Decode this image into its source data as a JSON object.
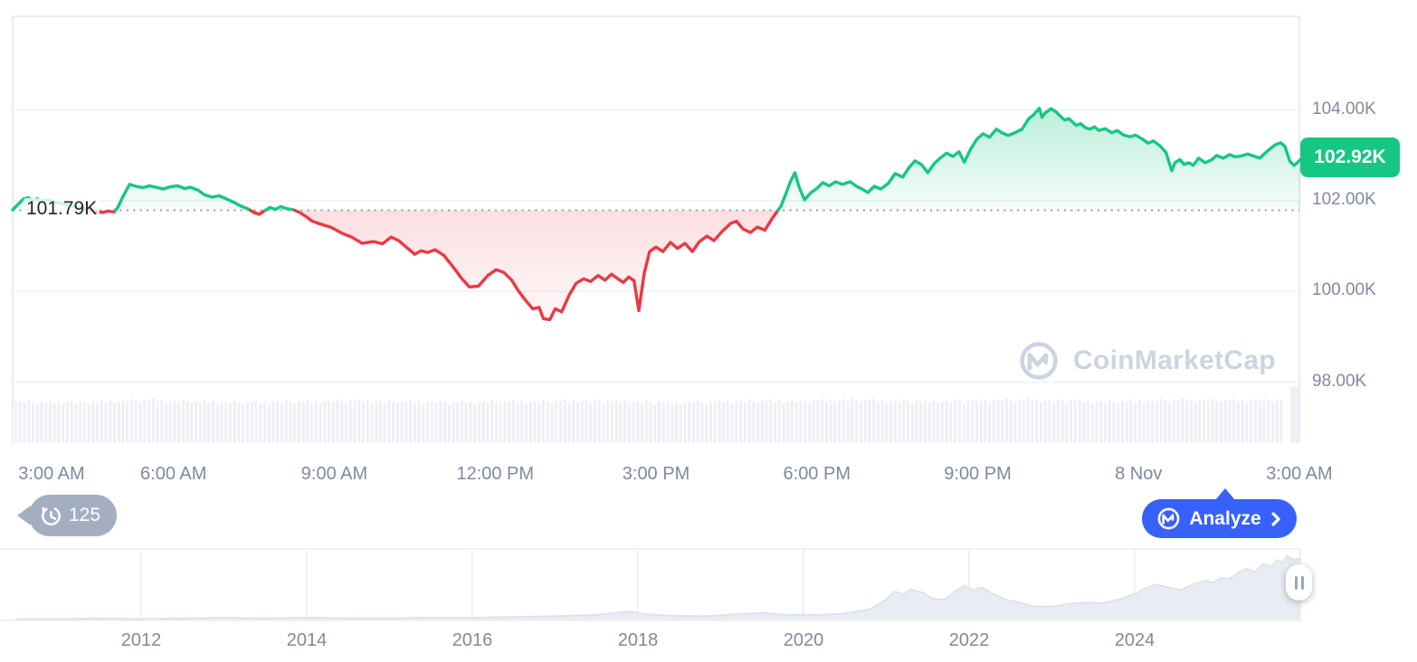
{
  "watermark": {
    "text": "CoinMarketCap"
  },
  "history_badge": {
    "count": "125"
  },
  "analyze_button": {
    "label": "Analyze"
  },
  "chart_data": [
    {
      "id": "price",
      "type": "line",
      "title": "BTC price (24h), CoinMarketCap style chart",
      "unit": "USD thousands",
      "up_color": "#16c784",
      "down_color": "#ea3943",
      "grid_color": "#eef1f6",
      "border_color": "#e7eaef",
      "axis_text_color": "#808a9d",
      "ylim": [
        97.6,
        104.6
      ],
      "y_ticks": [
        {
          "value": 104,
          "label": "104.00K"
        },
        {
          "value": 102,
          "label": "102.00K"
        },
        {
          "value": 100,
          "label": "100.00K"
        },
        {
          "value": 98,
          "label": "98.00K"
        }
      ],
      "baseline": {
        "value": 101.79,
        "label": "101.79K"
      },
      "last_price": {
        "value": 102.92,
        "label": "102.92K"
      },
      "x_ticks": [
        {
          "t": 0,
          "label": "3:00 AM"
        },
        {
          "t": 3,
          "label": "6:00 AM"
        },
        {
          "t": 6,
          "label": "9:00 AM"
        },
        {
          "t": 9,
          "label": "12:00 PM"
        },
        {
          "t": 12,
          "label": "3:00 PM"
        },
        {
          "t": 15,
          "label": "6:00 PM"
        },
        {
          "t": 18,
          "label": "9:00 PM"
        },
        {
          "t": 21,
          "label": "8 Nov"
        },
        {
          "t": 24,
          "label": "3:00 AM"
        }
      ],
      "points": [
        [
          0,
          101.8
        ],
        [
          0.1,
          101.92
        ],
        [
          0.2,
          102.04
        ],
        [
          0.29,
          102.07
        ],
        [
          0.37,
          102.0
        ],
        [
          0.46,
          102.05
        ],
        [
          0.54,
          101.99
        ],
        [
          0.64,
          102.02
        ],
        [
          0.78,
          101.97
        ],
        [
          0.95,
          101.93
        ],
        [
          1.12,
          101.88
        ],
        [
          1.28,
          101.84
        ],
        [
          1.42,
          101.8
        ],
        [
          1.55,
          101.76
        ],
        [
          1.67,
          101.74
        ],
        [
          1.79,
          101.77
        ],
        [
          1.89,
          101.75
        ],
        [
          1.96,
          101.85
        ],
        [
          2.06,
          102.1
        ],
        [
          2.18,
          102.36
        ],
        [
          2.3,
          102.32
        ],
        [
          2.43,
          102.29
        ],
        [
          2.55,
          102.33
        ],
        [
          2.67,
          102.3
        ],
        [
          2.81,
          102.26
        ],
        [
          2.94,
          102.31
        ],
        [
          3.08,
          102.33
        ],
        [
          3.21,
          102.27
        ],
        [
          3.31,
          102.3
        ],
        [
          3.45,
          102.24
        ],
        [
          3.58,
          102.13
        ],
        [
          3.72,
          102.08
        ],
        [
          3.85,
          102.11
        ],
        [
          3.99,
          102.04
        ],
        [
          4.12,
          101.97
        ],
        [
          4.26,
          101.88
        ],
        [
          4.39,
          101.82
        ],
        [
          4.5,
          101.74
        ],
        [
          4.6,
          101.7
        ],
        [
          4.7,
          101.78
        ],
        [
          4.8,
          101.85
        ],
        [
          4.9,
          101.81
        ],
        [
          5.0,
          101.87
        ],
        [
          5.1,
          101.83
        ],
        [
          5.24,
          101.8
        ],
        [
          5.37,
          101.73
        ],
        [
          5.51,
          101.62
        ],
        [
          5.59,
          101.55
        ],
        [
          5.76,
          101.48
        ],
        [
          5.93,
          101.42
        ],
        [
          6.15,
          101.28
        ],
        [
          6.32,
          101.2
        ],
        [
          6.52,
          101.06
        ],
        [
          6.73,
          101.1
        ],
        [
          6.9,
          101.05
        ],
        [
          7.06,
          101.2
        ],
        [
          7.2,
          101.12
        ],
        [
          7.37,
          100.95
        ],
        [
          7.5,
          100.82
        ],
        [
          7.62,
          100.9
        ],
        [
          7.74,
          100.86
        ],
        [
          7.88,
          100.92
        ],
        [
          8.04,
          100.8
        ],
        [
          8.21,
          100.55
        ],
        [
          8.38,
          100.28
        ],
        [
          8.52,
          100.1
        ],
        [
          8.69,
          100.12
        ],
        [
          8.86,
          100.35
        ],
        [
          9.02,
          100.48
        ],
        [
          9.16,
          100.42
        ],
        [
          9.31,
          100.25
        ],
        [
          9.43,
          100.02
        ],
        [
          9.57,
          99.8
        ],
        [
          9.7,
          99.62
        ],
        [
          9.82,
          99.65
        ],
        [
          9.9,
          99.4
        ],
        [
          10.02,
          99.38
        ],
        [
          10.12,
          99.62
        ],
        [
          10.24,
          99.55
        ],
        [
          10.38,
          99.92
        ],
        [
          10.51,
          100.18
        ],
        [
          10.65,
          100.28
        ],
        [
          10.78,
          100.22
        ],
        [
          10.92,
          100.35
        ],
        [
          11.05,
          100.25
        ],
        [
          11.17,
          100.38
        ],
        [
          11.29,
          100.28
        ],
        [
          11.39,
          100.2
        ],
        [
          11.49,
          100.32
        ],
        [
          11.59,
          100.24
        ],
        [
          11.68,
          99.58
        ],
        [
          11.78,
          100.4
        ],
        [
          11.88,
          100.88
        ],
        [
          12.0,
          100.98
        ],
        [
          12.13,
          100.88
        ],
        [
          12.27,
          101.08
        ],
        [
          12.4,
          100.95
        ],
        [
          12.54,
          101.06
        ],
        [
          12.68,
          100.88
        ],
        [
          12.81,
          101.1
        ],
        [
          12.95,
          101.22
        ],
        [
          13.08,
          101.12
        ],
        [
          13.23,
          101.32
        ],
        [
          13.39,
          101.5
        ],
        [
          13.5,
          101.55
        ],
        [
          13.62,
          101.38
        ],
        [
          13.76,
          101.3
        ],
        [
          13.89,
          101.42
        ],
        [
          14.03,
          101.35
        ],
        [
          14.16,
          101.6
        ],
        [
          14.27,
          101.78
        ],
        [
          14.33,
          101.88
        ],
        [
          14.42,
          102.15
        ],
        [
          14.5,
          102.4
        ],
        [
          14.59,
          102.62
        ],
        [
          14.67,
          102.3
        ],
        [
          14.77,
          102.02
        ],
        [
          14.89,
          102.18
        ],
        [
          15.01,
          102.28
        ],
        [
          15.11,
          102.4
        ],
        [
          15.23,
          102.33
        ],
        [
          15.35,
          102.42
        ],
        [
          15.48,
          102.36
        ],
        [
          15.62,
          102.42
        ],
        [
          15.74,
          102.32
        ],
        [
          15.86,
          102.25
        ],
        [
          15.95,
          102.18
        ],
        [
          16.07,
          102.32
        ],
        [
          16.19,
          102.26
        ],
        [
          16.33,
          102.38
        ],
        [
          16.46,
          102.6
        ],
        [
          16.6,
          102.52
        ],
        [
          16.71,
          102.72
        ],
        [
          16.83,
          102.88
        ],
        [
          16.95,
          102.8
        ],
        [
          17.07,
          102.62
        ],
        [
          17.19,
          102.82
        ],
        [
          17.31,
          102.95
        ],
        [
          17.42,
          103.05
        ],
        [
          17.54,
          102.98
        ],
        [
          17.65,
          103.08
        ],
        [
          17.75,
          102.85
        ],
        [
          17.86,
          103.12
        ],
        [
          17.98,
          103.35
        ],
        [
          18.1,
          103.48
        ],
        [
          18.22,
          103.4
        ],
        [
          18.35,
          103.58
        ],
        [
          18.45,
          103.5
        ],
        [
          18.57,
          103.44
        ],
        [
          18.69,
          103.5
        ],
        [
          18.83,
          103.58
        ],
        [
          18.95,
          103.81
        ],
        [
          19.03,
          103.88
        ],
        [
          19.15,
          104.04
        ],
        [
          19.2,
          103.84
        ],
        [
          19.26,
          103.94
        ],
        [
          19.37,
          104.03
        ],
        [
          19.45,
          103.97
        ],
        [
          19.53,
          103.88
        ],
        [
          19.62,
          103.78
        ],
        [
          19.7,
          103.81
        ],
        [
          19.84,
          103.66
        ],
        [
          19.92,
          103.7
        ],
        [
          20.01,
          103.61
        ],
        [
          20.09,
          103.58
        ],
        [
          20.18,
          103.63
        ],
        [
          20.26,
          103.55
        ],
        [
          20.38,
          103.59
        ],
        [
          20.5,
          103.5
        ],
        [
          20.6,
          103.55
        ],
        [
          20.72,
          103.45
        ],
        [
          20.84,
          103.41
        ],
        [
          20.94,
          103.45
        ],
        [
          21.06,
          103.37
        ],
        [
          21.18,
          103.27
        ],
        [
          21.28,
          103.32
        ],
        [
          21.4,
          103.21
        ],
        [
          21.51,
          103.07
        ],
        [
          21.62,
          102.66
        ],
        [
          21.68,
          102.84
        ],
        [
          21.77,
          102.91
        ],
        [
          21.85,
          102.8
        ],
        [
          21.94,
          102.84
        ],
        [
          22.02,
          102.78
        ],
        [
          22.12,
          102.94
        ],
        [
          22.24,
          102.84
        ],
        [
          22.36,
          102.9
        ],
        [
          22.46,
          103.0
        ],
        [
          22.58,
          102.94
        ],
        [
          22.7,
          103.02
        ],
        [
          22.8,
          102.97
        ],
        [
          22.92,
          102.99
        ],
        [
          23.04,
          103.03
        ],
        [
          23.14,
          102.99
        ],
        [
          23.26,
          102.94
        ],
        [
          23.38,
          103.07
        ],
        [
          23.48,
          103.17
        ],
        [
          23.56,
          103.24
        ],
        [
          23.65,
          103.28
        ],
        [
          23.73,
          103.2
        ],
        [
          23.82,
          102.88
        ],
        [
          23.9,
          102.78
        ],
        [
          23.97,
          102.85
        ],
        [
          24.03,
          102.92
        ]
      ]
    },
    {
      "id": "volume",
      "type": "bar",
      "color": "#edf0f5",
      "profile": [
        46,
        45,
        46,
        48,
        46,
        45,
        46,
        46,
        47,
        46,
        45,
        46,
        46,
        47,
        46,
        45,
        46,
        47,
        46,
        48,
        47,
        46,
        47,
        48,
        47,
        46,
        47,
        48,
        47,
        48
      ],
      "jitter": [
        0,
        1,
        -1,
        2,
        0,
        -2,
        1,
        0,
        2,
        -1,
        1,
        -2
      ],
      "tail_bar_height": 62
    },
    {
      "id": "navigator",
      "type": "area",
      "fill_color": "#e9edf3",
      "line_color": "#dde3eb",
      "grid_color": "#e9ecf1",
      "year_range": [
        2010.3,
        2026.0
      ],
      "x_ticks": [
        2012,
        2014,
        2016,
        2018,
        2020,
        2022,
        2024
      ],
      "points": [
        [
          2010.5,
          0.02
        ],
        [
          2011,
          0.02
        ],
        [
          2011.5,
          0.03
        ],
        [
          2012,
          0.02
        ],
        [
          2012.5,
          0.03
        ],
        [
          2013,
          0.04
        ],
        [
          2013.5,
          0.03
        ],
        [
          2014,
          0.04
        ],
        [
          2014.5,
          0.03
        ],
        [
          2015,
          0.03
        ],
        [
          2015.5,
          0.04
        ],
        [
          2016,
          0.04
        ],
        [
          2016.5,
          0.05
        ],
        [
          2017,
          0.06
        ],
        [
          2017.5,
          0.08
        ],
        [
          2017.9,
          0.13
        ],
        [
          2018.1,
          0.09
        ],
        [
          2018.4,
          0.07
        ],
        [
          2018.8,
          0.06
        ],
        [
          2019.2,
          0.09
        ],
        [
          2019.5,
          0.11
        ],
        [
          2019.8,
          0.08
        ],
        [
          2020.2,
          0.08
        ],
        [
          2020.5,
          0.1
        ],
        [
          2020.8,
          0.16
        ],
        [
          2021.0,
          0.3
        ],
        [
          2021.1,
          0.42
        ],
        [
          2021.2,
          0.38
        ],
        [
          2021.3,
          0.45
        ],
        [
          2021.45,
          0.4
        ],
        [
          2021.55,
          0.32
        ],
        [
          2021.7,
          0.3
        ],
        [
          2021.85,
          0.44
        ],
        [
          2021.95,
          0.5
        ],
        [
          2022.05,
          0.44
        ],
        [
          2022.15,
          0.48
        ],
        [
          2022.3,
          0.38
        ],
        [
          2022.45,
          0.3
        ],
        [
          2022.6,
          0.26
        ],
        [
          2022.8,
          0.2
        ],
        [
          2023.0,
          0.2
        ],
        [
          2023.2,
          0.24
        ],
        [
          2023.4,
          0.26
        ],
        [
          2023.6,
          0.25
        ],
        [
          2023.8,
          0.3
        ],
        [
          2024.0,
          0.38
        ],
        [
          2024.1,
          0.45
        ],
        [
          2024.25,
          0.52
        ],
        [
          2024.4,
          0.48
        ],
        [
          2024.55,
          0.44
        ],
        [
          2024.7,
          0.52
        ],
        [
          2024.85,
          0.58
        ],
        [
          2024.95,
          0.55
        ],
        [
          2025.05,
          0.62
        ],
        [
          2025.15,
          0.6
        ],
        [
          2025.25,
          0.7
        ],
        [
          2025.35,
          0.75
        ],
        [
          2025.45,
          0.7
        ],
        [
          2025.55,
          0.82
        ],
        [
          2025.65,
          0.78
        ],
        [
          2025.72,
          0.88
        ],
        [
          2025.78,
          0.84
        ],
        [
          2025.84,
          0.94
        ],
        [
          2025.92,
          0.88
        ],
        [
          2026.0,
          0.9
        ]
      ]
    }
  ]
}
